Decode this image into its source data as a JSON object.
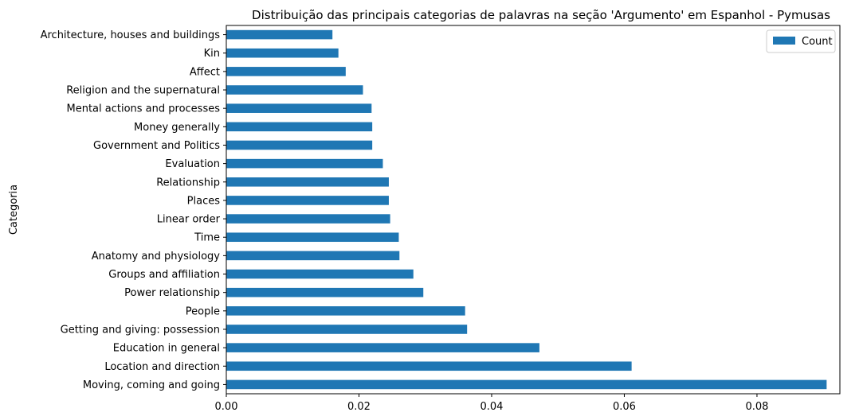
{
  "chart_data": {
    "type": "bar",
    "orientation": "horizontal",
    "title": "Distribuição das principais categorias de palavras na seção 'Argumento' em Espanhol - Pymusas",
    "xlabel": "",
    "ylabel": "Categoria",
    "xlim": [
      0,
      0.0925
    ],
    "xticks": [
      "0.00",
      "0.02",
      "0.04",
      "0.06",
      "0.08"
    ],
    "xtick_values": [
      0,
      0.02,
      0.04,
      0.06,
      0.08
    ],
    "categories": [
      "Moving, coming and going",
      "Location and direction",
      "Education in general",
      "Getting and giving: possession",
      "People",
      "Power relationship",
      "Groups and affiliation",
      "Anatomy and physiology",
      "Time",
      "Linear order",
      "Places",
      "Relationship",
      "Evaluation",
      "Government and Politics ",
      "Money generally",
      "Mental actions and processes",
      "Religion and the supernatural",
      "Affect",
      "Kin",
      "Architecture, houses and buildings"
    ],
    "series": [
      {
        "name": "Count",
        "color": "#1f77b4",
        "values": [
          0.0905,
          0.0611,
          0.0472,
          0.0363,
          0.036,
          0.0297,
          0.0282,
          0.0261,
          0.026,
          0.0247,
          0.0245,
          0.0245,
          0.0236,
          0.022,
          0.022,
          0.0219,
          0.0206,
          0.018,
          0.0169,
          0.016
        ]
      }
    ],
    "legend": {
      "position": "top-right",
      "entries": [
        "Count"
      ]
    },
    "grid": false
  }
}
